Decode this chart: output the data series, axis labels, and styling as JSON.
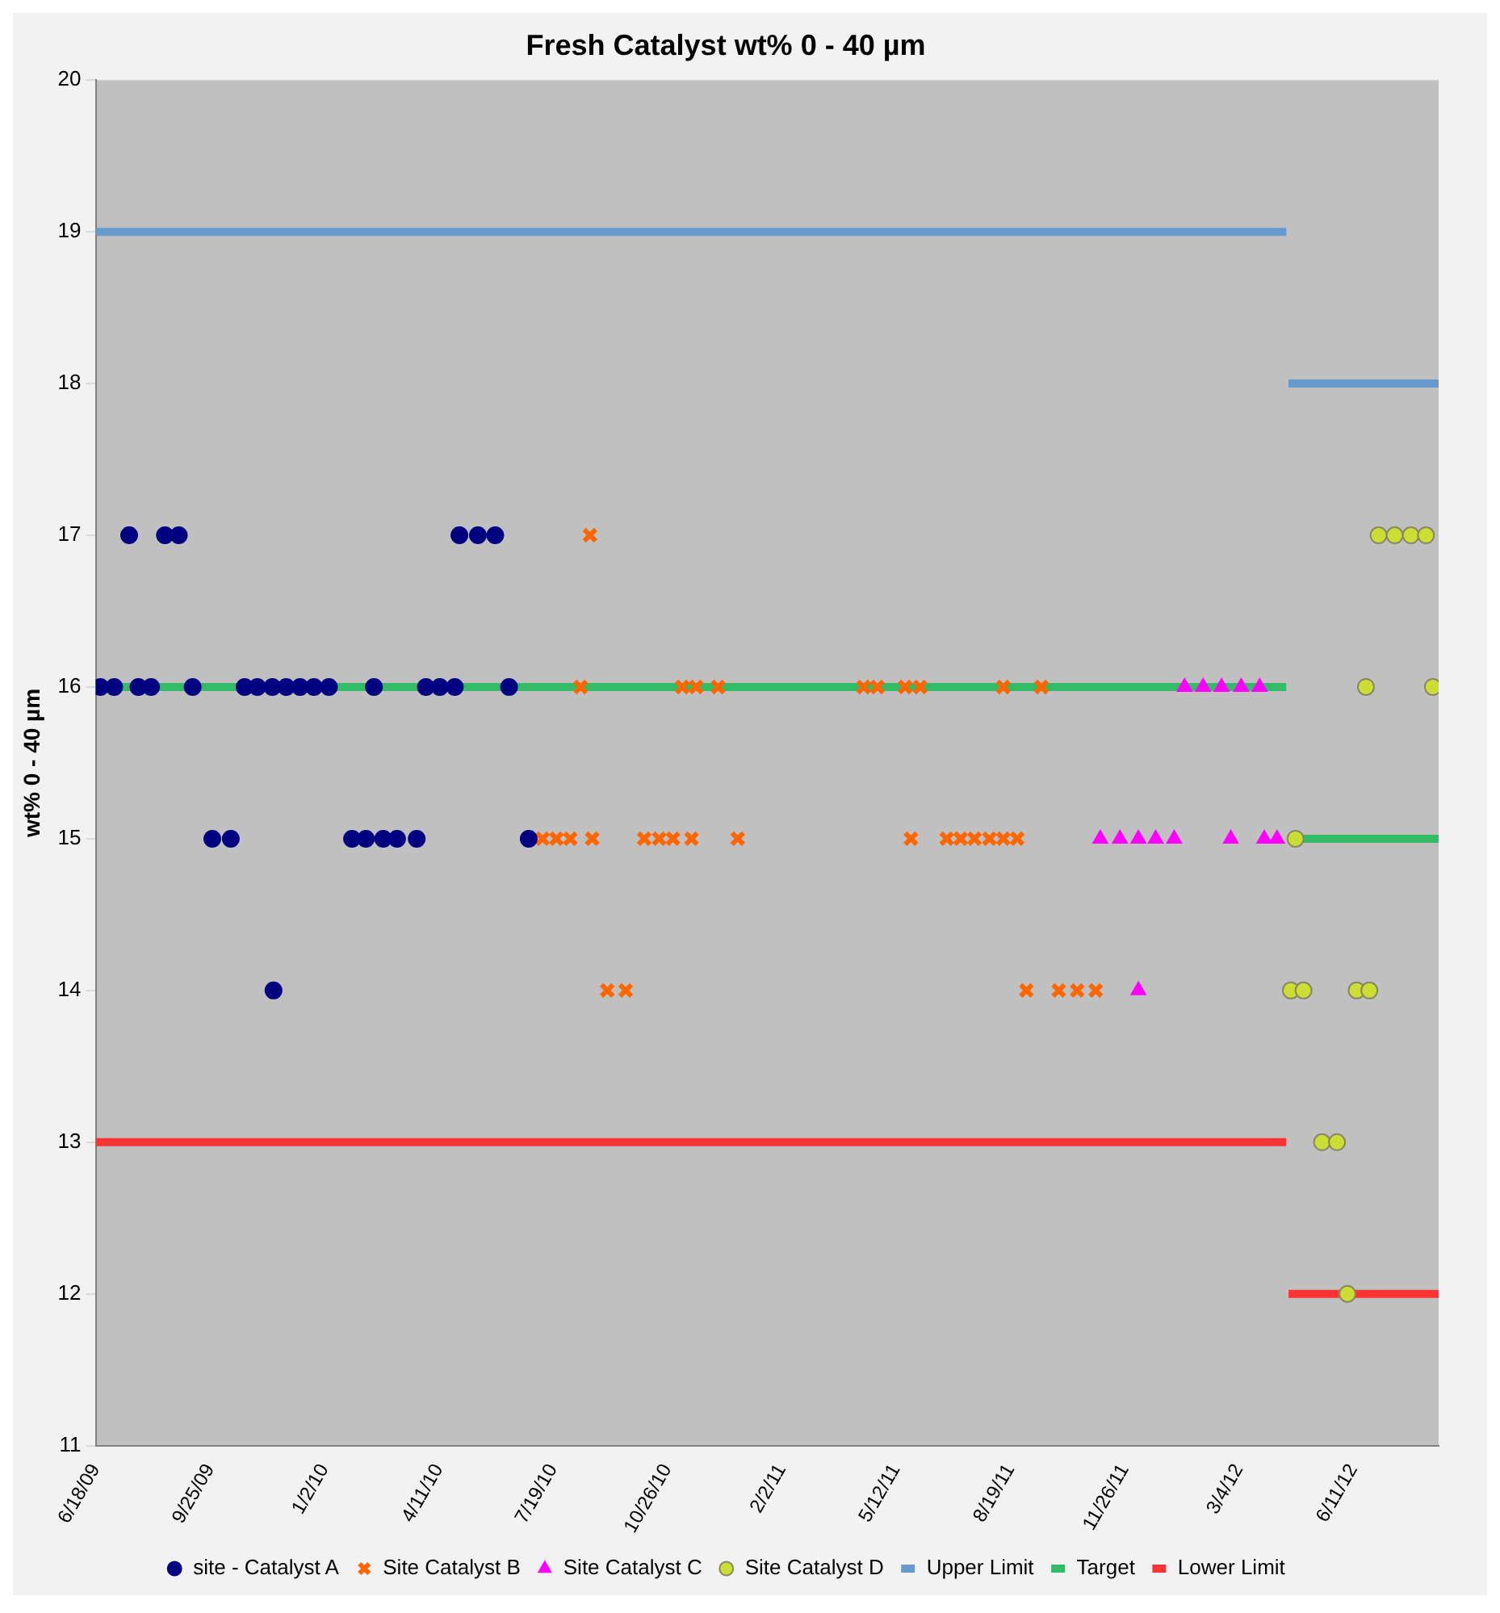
{
  "chart_data": {
    "type": "scatter",
    "title": "Fresh Catalyst wt% 0 - 40 µm",
    "ylabel": "wt% 0 - 40 µm",
    "xlim": [
      "2009-06-18",
      "2012-08-24"
    ],
    "xticks": [
      {
        "value": "2009-06-18",
        "label": "6/18/09"
      },
      {
        "value": "2009-09-25",
        "label": "9/25/09"
      },
      {
        "value": "2010-01-02",
        "label": "1/2/10"
      },
      {
        "value": "2010-04-11",
        "label": "4/11/10"
      },
      {
        "value": "2010-07-19",
        "label": "7/19/10"
      },
      {
        "value": "2010-10-26",
        "label": "10/26/10"
      },
      {
        "value": "2011-02-02",
        "label": "2/2/11"
      },
      {
        "value": "2011-05-12",
        "label": "5/12/11"
      },
      {
        "value": "2011-08-19",
        "label": "8/19/11"
      },
      {
        "value": "2011-11-26",
        "label": "11/26/11"
      },
      {
        "value": "2012-03-04",
        "label": "3/4/12"
      },
      {
        "value": "2012-06-11",
        "label": "6/11/12"
      }
    ],
    "ylim": [
      11,
      20
    ],
    "yticks": [
      11,
      12,
      13,
      14,
      15,
      16,
      17,
      18,
      19,
      20
    ],
    "grid": false,
    "legend": "bottom",
    "series": [
      {
        "name": "site - Catalyst A",
        "marker": "circle",
        "color": "#000080",
        "x": [
          "2009-07-17",
          "2009-08-17",
          "2009-08-29",
          "2010-04-29",
          "2010-05-15",
          "2010-05-30",
          "2009-06-22",
          "2009-07-04",
          "2009-07-25",
          "2009-08-05",
          "2009-09-10",
          "2009-10-25",
          "2009-11-05",
          "2009-11-18",
          "2009-11-30",
          "2009-12-12",
          "2009-12-24",
          "2010-01-06",
          "2010-02-14",
          "2010-03-31",
          "2010-04-12",
          "2010-04-25",
          "2010-06-11",
          "2009-09-27",
          "2009-10-13",
          "2010-01-26",
          "2010-02-07",
          "2010-02-22",
          "2010-03-06",
          "2010-03-23",
          "2010-06-28",
          "2009-11-19"
        ],
        "values": [
          17,
          17,
          17,
          17,
          17,
          17,
          16,
          16,
          16,
          16,
          16,
          16,
          16,
          16,
          16,
          16,
          16,
          16,
          16,
          16,
          16,
          16,
          16,
          15,
          15,
          15,
          15,
          15,
          15,
          15,
          15,
          14
        ]
      },
      {
        "name": "Site Catalyst B",
        "marker": "cross",
        "color": "#ff6600",
        "x": [
          "2010-08-20",
          "2010-08-12",
          "2010-11-08",
          "2010-11-20",
          "2010-12-09",
          "2011-04-14",
          "2011-04-26",
          "2011-05-20",
          "2011-06-02",
          "2011-08-13",
          "2011-09-15",
          "2010-07-10",
          "2010-07-22",
          "2010-08-03",
          "2010-08-22",
          "2010-10-06",
          "2010-10-19",
          "2010-10-31",
          "2010-11-16",
          "2010-12-26",
          "2011-05-25",
          "2011-06-25",
          "2011-07-07",
          "2011-07-19",
          "2011-08-01",
          "2011-08-13",
          "2011-08-25",
          "2010-09-04",
          "2010-09-20",
          "2011-09-02",
          "2011-09-30",
          "2011-10-16",
          "2011-11-01"
        ],
        "values": [
          17,
          16,
          16,
          16,
          16,
          16,
          16,
          16,
          16,
          16,
          16,
          15,
          15,
          15,
          15,
          15,
          15,
          15,
          15,
          15,
          15,
          15,
          15,
          15,
          15,
          15,
          15,
          14,
          14,
          14,
          14,
          14,
          14
        ]
      },
      {
        "name": "Site Catalyst C",
        "marker": "triangle",
        "color": "#ff00ff",
        "x": [
          "2012-01-17",
          "2012-02-02",
          "2012-02-18",
          "2012-03-06",
          "2012-03-22",
          "2011-11-05",
          "2011-11-22",
          "2011-12-08",
          "2011-12-23",
          "2012-01-08",
          "2012-02-26",
          "2012-03-26",
          "2012-04-06",
          "2011-12-08"
        ],
        "values": [
          16,
          16,
          16,
          16,
          16,
          15,
          15,
          15,
          15,
          15,
          15,
          15,
          15,
          14
        ]
      },
      {
        "name": "Site Catalyst D",
        "marker": "circle",
        "color": "#ccdd33",
        "x": [
          "2012-07-03",
          "2012-07-17",
          "2012-07-31",
          "2012-08-13",
          "2012-06-22",
          "2012-08-19",
          "2012-04-22",
          "2012-04-18",
          "2012-04-29",
          "2012-06-14",
          "2012-06-25",
          "2012-05-15",
          "2012-05-28",
          "2012-06-06"
        ],
        "values": [
          17,
          17,
          17,
          17,
          16,
          16,
          15,
          14,
          14,
          14,
          14,
          13,
          13,
          12
        ]
      },
      {
        "name": "Upper Limit",
        "type": "line",
        "marker": "none",
        "color": "#6699cc",
        "x": [
          "2009-06-18",
          "2012-04-14",
          "2012-04-15",
          "2012-04-16",
          "2012-08-24"
        ],
        "values": [
          19,
          19,
          null,
          18,
          18
        ]
      },
      {
        "name": "Target",
        "type": "line",
        "marker": "none",
        "color": "#33bb66",
        "x": [
          "2009-06-18",
          "2012-04-14",
          "2012-04-15",
          "2012-04-16",
          "2012-08-24"
        ],
        "values": [
          16,
          16,
          null,
          15,
          15
        ]
      },
      {
        "name": "Lower Limit",
        "type": "line",
        "marker": "none",
        "color": "#ff3333",
        "x": [
          "2009-06-18",
          "2012-04-14",
          "2012-04-15",
          "2012-04-16",
          "2012-08-24"
        ],
        "values": [
          13,
          13,
          null,
          12,
          12
        ]
      }
    ]
  }
}
